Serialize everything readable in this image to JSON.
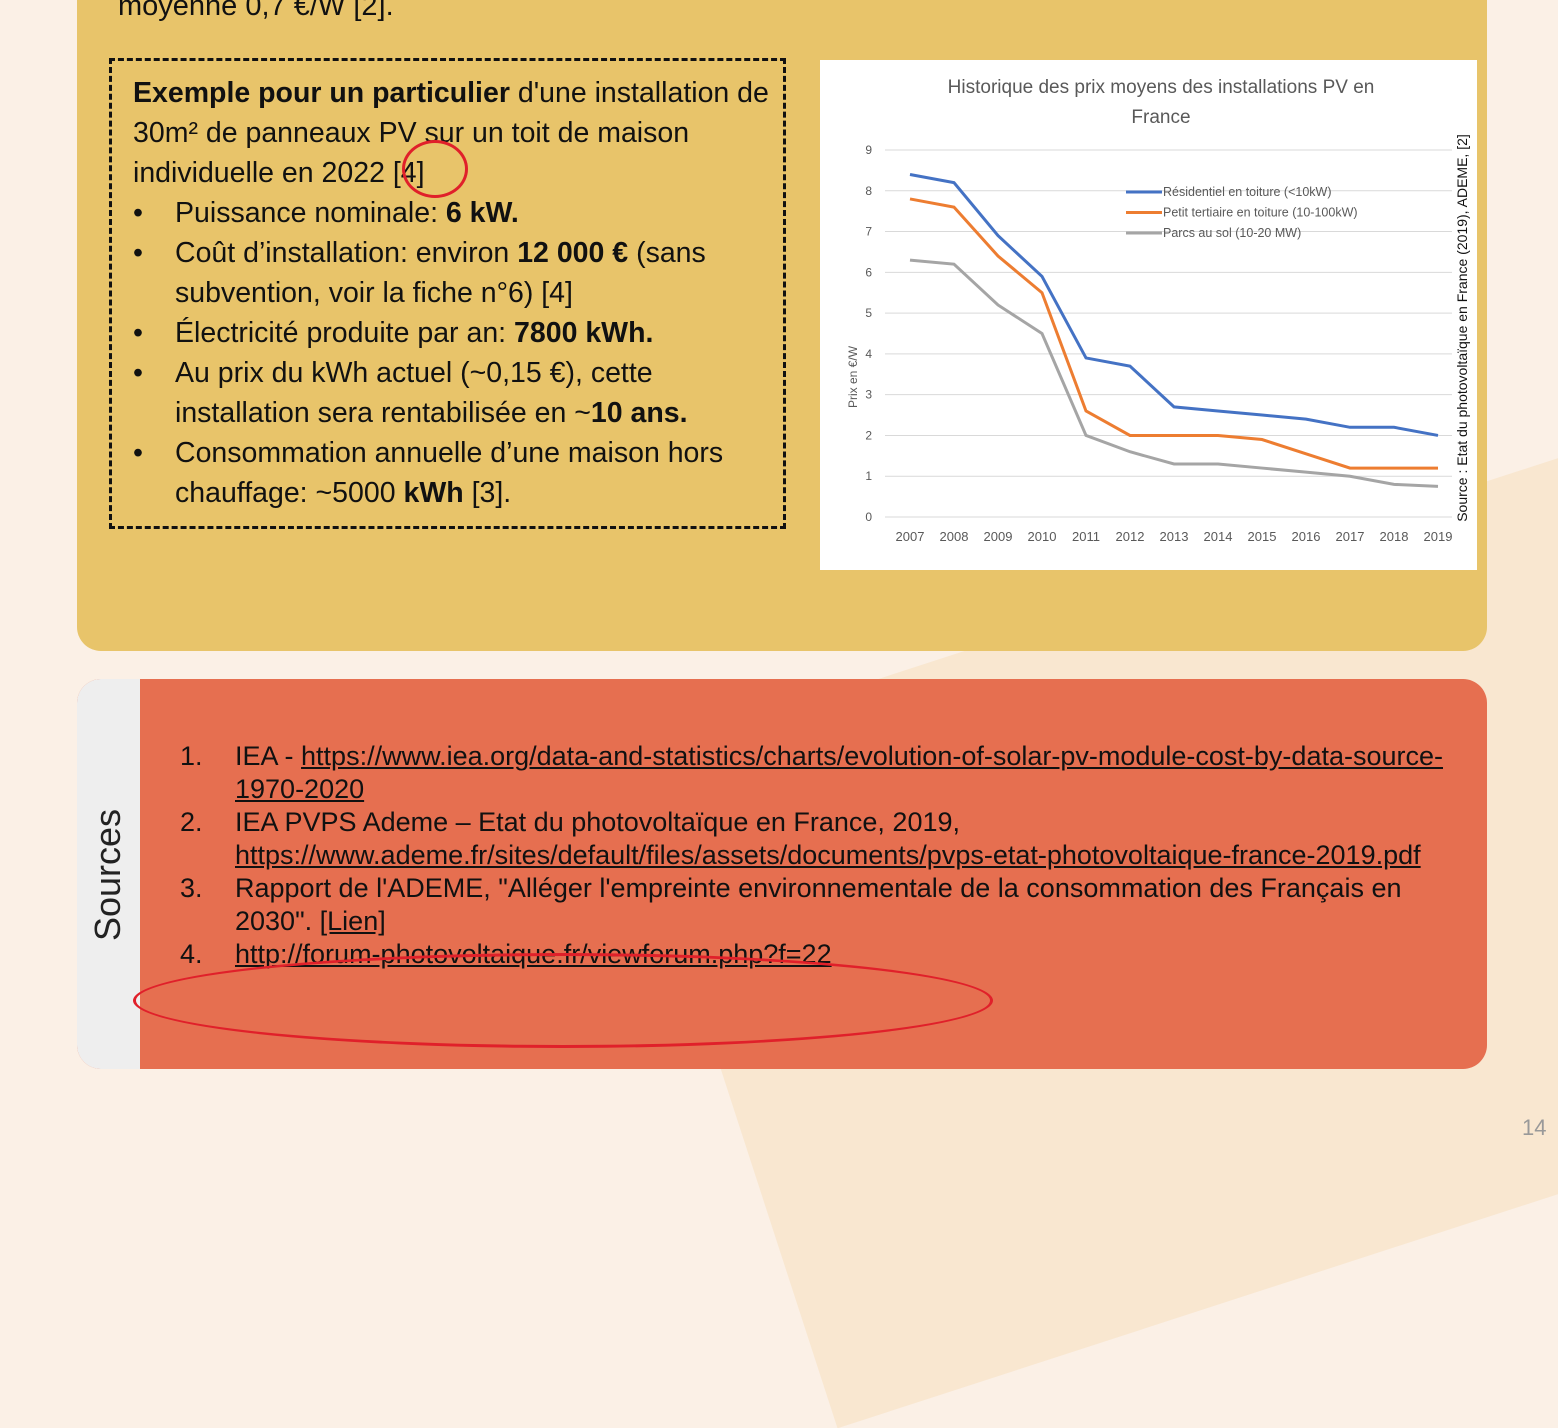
{
  "top_text": "moyenne 0,7 €/W [2].",
  "example": {
    "intro_bold": "Exemple pour un particulier",
    "intro_rest": " d'une installation de 30m² de panneaux PV sur un toit de maison individuelle en 2022 [4]",
    "items": [
      {
        "text": "Puissance nominale: ",
        "bold": "6 kW.",
        "after": ""
      },
      {
        "text": "Coût d’installation: environ ",
        "bold": "12 000 €",
        "after": " (sans subvention, voir la fiche n°6) [4]"
      },
      {
        "text": "Électricité produite par an: ",
        "bold": "7800 kWh.",
        "after": ""
      },
      {
        "text": "Au prix du kWh actuel (~0,15 €), cette installation sera rentabilisée en ~",
        "bold": "10 ans.",
        "after": ""
      },
      {
        "text": "Consommation annuelle d’une maison hors chauffage: ~5000 ",
        "bold": "kWh",
        "after": " [3]."
      }
    ]
  },
  "chart_data": {
    "type": "line",
    "title": "Historique des prix moyens des installations PV en France",
    "ylabel": "Prix en €/W",
    "xlabel": "",
    "ylim": [
      0,
      9
    ],
    "yticks": [
      "0",
      "1",
      "2",
      "3",
      "4",
      "5",
      "6",
      "7",
      "8",
      "9"
    ],
    "categories": [
      "2007",
      "2008",
      "2009",
      "2010",
      "2011",
      "2012",
      "2013",
      "2014",
      "2015",
      "2016",
      "2017",
      "2018",
      "2019"
    ],
    "grid": true,
    "legend": "top-right",
    "series": [
      {
        "name": "Résidentiel en toiture (<10kW)",
        "color": "#4472c4",
        "values": [
          8.4,
          8.2,
          6.9,
          5.9,
          3.9,
          3.7,
          2.7,
          2.6,
          2.5,
          2.4,
          2.2,
          2.2,
          2.0
        ]
      },
      {
        "name": "Petit tertiaire en toiture (10-100kW)",
        "color": "#ed7d31",
        "values": [
          7.8,
          7.6,
          6.4,
          5.5,
          2.6,
          2.0,
          2.0,
          2.0,
          1.9,
          1.55,
          1.2,
          1.2,
          1.2
        ]
      },
      {
        "name": "Parcs au sol (10-20 MW)",
        "color": "#a5a5a5",
        "values": [
          6.3,
          6.2,
          5.2,
          4.5,
          2.0,
          1.6,
          1.3,
          1.3,
          1.2,
          1.1,
          1.0,
          0.8,
          0.75
        ]
      }
    ],
    "source": "Source : Etat du photovoltaïque en France (2019), ADEME, [2]"
  },
  "sources": {
    "label": "Sources",
    "items": [
      {
        "num": "1.",
        "text": "IEA - ",
        "link": "https://www.iea.org/data-and-statistics/charts/evolution-of-solar-pv-module-cost-by-data-source-1970-2020",
        "after": ""
      },
      {
        "num": "2.",
        "text": "IEA PVPS Ademe – Etat du photovoltaïque en France, 2019, ",
        "link": "https://www.ademe.fr/sites/default/files/assets/documents/pvps-etat-photovoltaique-france-2019.pdf",
        "after": ""
      },
      {
        "num": "3.",
        "text": "Rapport de l'ADEME, \"Alléger l'empreinte environnementale de la consommation des Français en 2030\". ",
        "link": "[Lien]",
        "after": ""
      },
      {
        "num": "4.",
        "text": "",
        "link": "http://forum-photovoltaique.fr/viewforum.php?f=22",
        "after": ""
      }
    ]
  },
  "page_number": "14"
}
